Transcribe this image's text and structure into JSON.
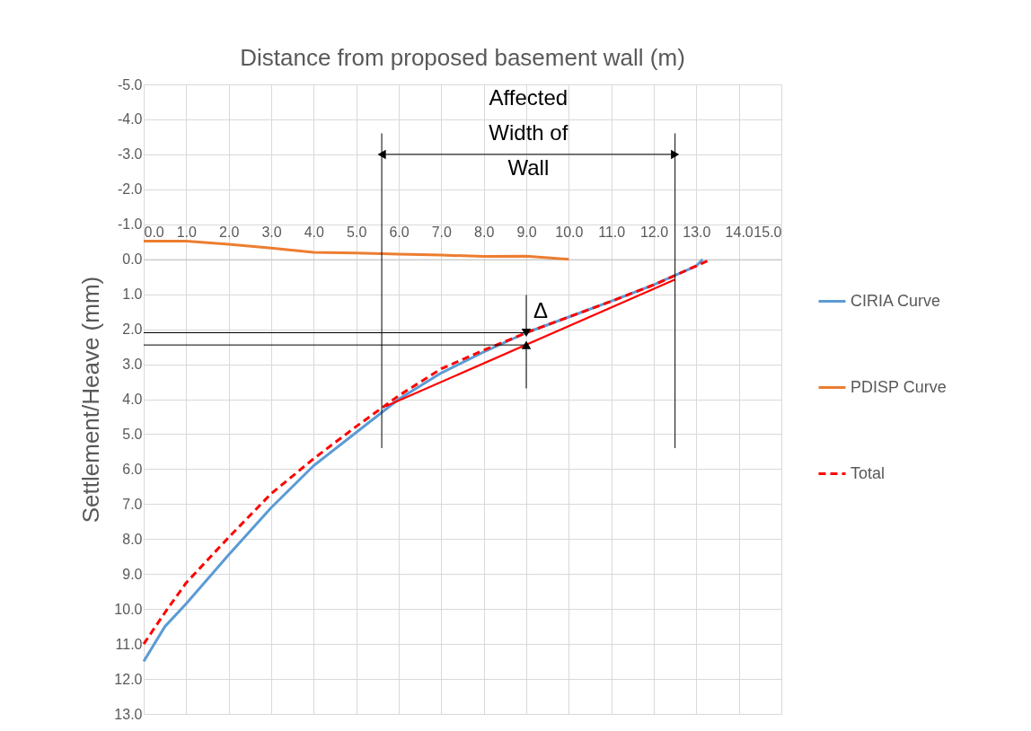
{
  "chart_data": {
    "type": "line",
    "xlabel": "Distance from proposed basement wall (m)",
    "ylabel": "Settlement/Heave (mm)",
    "xlim": [
      0,
      15
    ],
    "xticks": [
      {
        "value": 0,
        "label": "0.0"
      },
      {
        "value": 1,
        "label": "1.0"
      },
      {
        "value": 2,
        "label": "2.0"
      },
      {
        "value": 3,
        "label": "3.0"
      },
      {
        "value": 4,
        "label": "4.0"
      },
      {
        "value": 5,
        "label": "5.0"
      },
      {
        "value": 6,
        "label": "6.0"
      },
      {
        "value": 7,
        "label": "7.0"
      },
      {
        "value": 8,
        "label": "8.0"
      },
      {
        "value": 9,
        "label": "9.0"
      },
      {
        "value": 10,
        "label": "10.0"
      },
      {
        "value": 11,
        "label": "11.0"
      },
      {
        "value": 12,
        "label": "12.0"
      },
      {
        "value": 13,
        "label": "13.0"
      },
      {
        "value": 14,
        "label": "14.0"
      },
      {
        "value": 15,
        "label": "15.0"
      }
    ],
    "ylim": [
      13,
      -5
    ],
    "yticks": [
      {
        "value": -5,
        "label": "-5.0"
      },
      {
        "value": -4,
        "label": "-4.0"
      },
      {
        "value": -3,
        "label": "-3.0"
      },
      {
        "value": -2,
        "label": "-2.0"
      },
      {
        "value": -1,
        "label": "-1.0"
      },
      {
        "value": 0,
        "label": "0.0"
      },
      {
        "value": 1,
        "label": "1.0"
      },
      {
        "value": 2,
        "label": "2.0"
      },
      {
        "value": 3,
        "label": "3.0"
      },
      {
        "value": 4,
        "label": "4.0"
      },
      {
        "value": 5,
        "label": "5.0"
      },
      {
        "value": 6,
        "label": "6.0"
      },
      {
        "value": 7,
        "label": "7.0"
      },
      {
        "value": 8,
        "label": "8.0"
      },
      {
        "value": 9,
        "label": "9.0"
      },
      {
        "value": 10,
        "label": "10.0"
      },
      {
        "value": 11,
        "label": "11.0"
      },
      {
        "value": 12,
        "label": "12.0"
      },
      {
        "value": 13,
        "label": "13.0"
      }
    ],
    "grid": true,
    "legend": "right",
    "series": [
      {
        "name": "CIRIA Curve",
        "color": "#5b9bd5",
        "line_style": "solid",
        "x": [
          0,
          0.5,
          1,
          2,
          3,
          4,
          5,
          6,
          7,
          8,
          9,
          10,
          11,
          12,
          13,
          13.15
        ],
        "values": [
          11.5,
          10.5,
          9.85,
          8.45,
          7.1,
          5.9,
          4.95,
          4.0,
          3.25,
          2.65,
          2.1,
          1.65,
          1.2,
          0.73,
          0.19,
          0
        ]
      },
      {
        "name": "PDISP Curve",
        "color": "#ed7d31",
        "line_style": "solid",
        "x": [
          0,
          1,
          2,
          3,
          4,
          5,
          6,
          7,
          8,
          9,
          10
        ],
        "values": [
          -0.52,
          -0.52,
          -0.43,
          -0.32,
          -0.2,
          -0.18,
          -0.15,
          -0.12,
          -0.08,
          -0.09,
          0
        ]
      },
      {
        "name": "Total",
        "color": "#ff0000",
        "line_style": "dashed",
        "x": [
          0,
          0.5,
          1,
          2,
          3,
          4,
          5,
          6,
          7,
          8,
          9,
          10,
          11,
          12,
          13,
          13.35
        ],
        "values": [
          11.0,
          10.1,
          9.25,
          7.95,
          6.7,
          5.7,
          4.78,
          3.9,
          3.13,
          2.6,
          2.1,
          1.65,
          1.2,
          0.73,
          0.19,
          0
        ]
      },
      {
        "color": "#ff0000",
        "line_style": "solid",
        "x": [
          5.7,
          12.5
        ],
        "values": [
          4.2,
          0.58
        ]
      }
    ],
    "ref_lines": [
      {
        "axis": "x",
        "value": 5.6,
        "color": "#000000"
      },
      {
        "axis": "x",
        "value": 12.5,
        "color": "#000000"
      },
      {
        "axis": "y",
        "value": 2.1,
        "color": "#000000"
      },
      {
        "axis": "y",
        "value": 2.45,
        "color": "#000000"
      }
    ],
    "annotations": [
      "Affected\nWidth of\nWall",
      {
        "text": "Δ",
        "x": 9,
        "y": 2.1
      }
    ]
  }
}
